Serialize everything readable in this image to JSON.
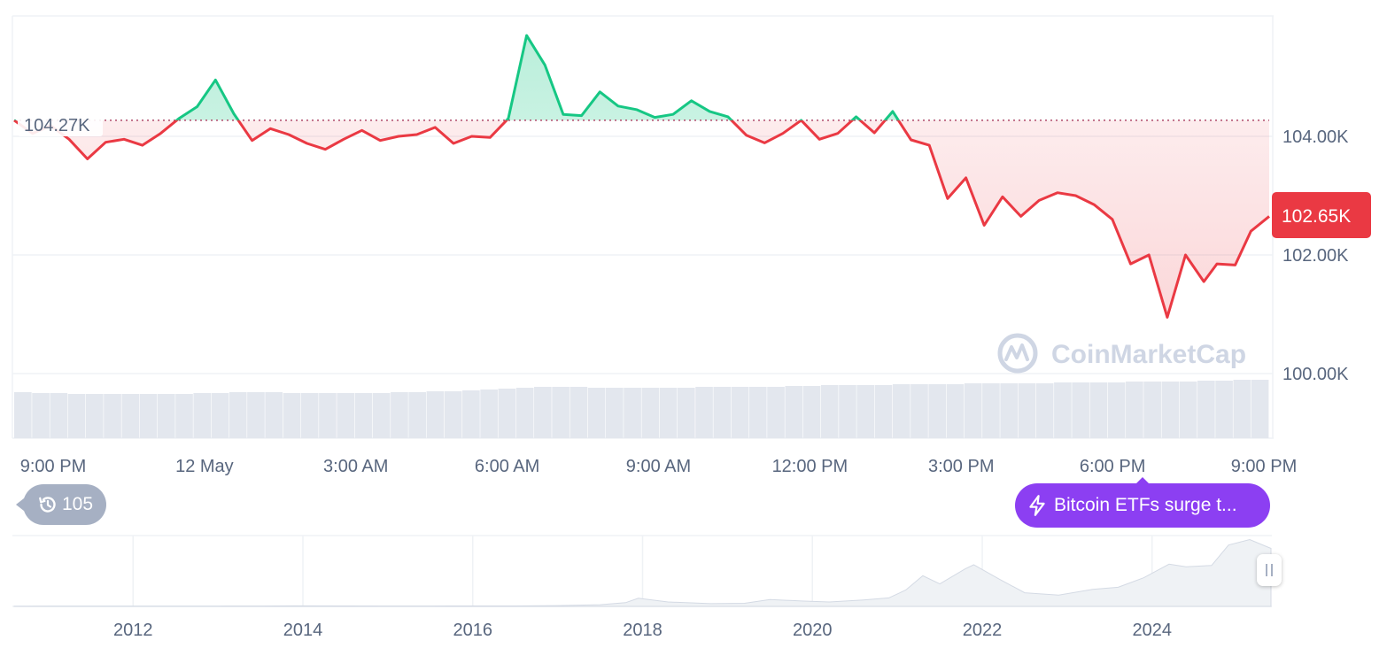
{
  "colors": {
    "up": "#16c784",
    "down": "#ea3943",
    "grid": "#eff2f5",
    "axis_text": "#58667e",
    "reference_line": "#b04a6a",
    "price_badge": "#ea3943",
    "volume": "#e3e7ee",
    "news_pill": "#8c3ff2",
    "history_badge": "#a6b0c3",
    "watermark": "#cfd6e4"
  },
  "watermark": {
    "text": "CoinMarketCap",
    "icon": "coinmarketcap-logo-icon"
  },
  "reference_label": "104.27K",
  "current_price_label": "102.65K",
  "history_badge": {
    "icon": "history-clock-icon",
    "count": "105"
  },
  "news": {
    "icon": "lightning-icon",
    "text": "Bitcoin ETFs surge t..."
  },
  "navigator": {
    "x_labels": [
      "2012",
      "2014",
      "2016",
      "2018",
      "2020",
      "2022",
      "2024"
    ]
  },
  "chart_data": [
    {
      "type": "line",
      "title": "",
      "xlabel": "",
      "ylabel": "",
      "x_tick_labels": [
        "9:00 PM",
        "12 May",
        "3:00 AM",
        "6:00 AM",
        "9:00 AM",
        "12:00 PM",
        "3:00 PM",
        "6:00 PM",
        "9:00 PM"
      ],
      "y_tick_labels": [
        "104.00K",
        "102.00K",
        "100.00K"
      ],
      "y_ticks": [
        104000,
        102000,
        100000
      ],
      "ylim": [
        99000,
        106150
      ],
      "grid": true,
      "baseline": 104270,
      "x_hours": [
        0,
        0.35,
        0.7,
        1.05,
        1.4,
        1.75,
        2.1,
        2.45,
        2.8,
        3.15,
        3.5,
        3.85,
        4.2,
        4.55,
        4.9,
        5.25,
        5.6,
        5.95,
        6.3,
        6.65,
        7,
        7.35,
        7.7,
        8.05,
        8.4,
        8.75,
        9.1,
        9.45,
        9.8,
        10.15,
        10.5,
        10.85,
        11.2,
        11.55,
        11.9,
        12.25,
        12.6,
        12.95,
        13.3,
        13.65,
        14,
        14.35,
        14.7,
        15.05,
        15.4,
        15.75,
        16.1,
        16.45,
        16.8,
        17.15,
        17.5,
        17.85,
        18.2,
        18.55,
        18.9,
        19.25,
        19.6,
        19.95,
        20.3,
        20.65,
        21,
        21.35,
        21.7,
        22.05,
        22.4,
        22.75,
        23,
        23.35,
        23.65,
        24
      ],
      "series": [
        {
          "values": [
            104270,
            104050,
            104180,
            103950,
            103620,
            103900,
            103950,
            103850,
            104050,
            104300,
            104500,
            104950,
            104380,
            103930,
            104130,
            104030,
            103880,
            103780,
            103950,
            104100,
            103930,
            104000,
            104030,
            104150,
            103880,
            104000,
            103980,
            104300,
            105700,
            105200,
            104370,
            104350,
            104750,
            104510,
            104450,
            104320,
            104370,
            104600,
            104420,
            104330,
            104020,
            103890,
            104050,
            104270,
            103950,
            104050,
            104330,
            104060,
            104420,
            103940,
            103850,
            102950,
            103300,
            102500,
            102980,
            102650,
            102920,
            103050,
            103000,
            102850,
            102600,
            101850,
            102000,
            100950,
            102000,
            101550,
            101850,
            101830,
            102400,
            102650
          ],
          "volume": [
            52,
            51,
            51,
            50,
            50,
            50,
            50,
            50,
            50,
            50,
            51,
            51,
            52,
            52,
            52,
            51,
            51,
            51,
            51,
            51,
            51,
            52,
            52,
            53,
            53,
            54,
            55,
            56,
            57,
            58,
            58,
            58,
            57,
            57,
            57,
            57,
            57,
            57,
            58,
            58,
            58,
            58,
            58,
            59,
            59,
            60,
            60,
            60,
            60,
            61,
            61,
            61,
            61,
            62,
            62,
            62,
            62,
            62,
            63,
            63,
            63,
            63,
            64,
            64,
            64,
            64,
            65,
            65,
            66,
            66
          ]
        }
      ]
    },
    {
      "type": "area",
      "title": "",
      "x_tick_labels": [
        "2012",
        "2014",
        "2016",
        "2018",
        "2020",
        "2022",
        "2024"
      ],
      "x": [
        2010.6,
        2011,
        2011.5,
        2012,
        2012.5,
        2013,
        2013.5,
        2013.9,
        2014.5,
        2015,
        2015.5,
        2016,
        2016.5,
        2017,
        2017.5,
        2017.8,
        2017.95,
        2018.3,
        2018.8,
        2019.2,
        2019.5,
        2019.9,
        2020.2,
        2020.6,
        2020.9,
        2021.1,
        2021.3,
        2021.5,
        2021.8,
        2021.9,
        2022.2,
        2022.5,
        2022.9,
        2023.3,
        2023.6,
        2023.9,
        2024.2,
        2024.4,
        2024.7,
        2024.9,
        2025.15,
        2025.4
      ],
      "values": [
        0.1,
        0.2,
        0.2,
        0.3,
        0.3,
        0.4,
        0.5,
        0.8,
        0.6,
        0.5,
        0.5,
        0.6,
        0.7,
        1.2,
        2.5,
        5.5,
        12,
        6.5,
        4,
        4.5,
        10,
        7.8,
        6.5,
        9.5,
        12.5,
        24,
        45,
        33,
        55,
        61,
        40,
        20,
        16.5,
        25,
        28,
        42,
        62,
        58,
        60,
        90,
        98,
        85
      ]
    }
  ]
}
